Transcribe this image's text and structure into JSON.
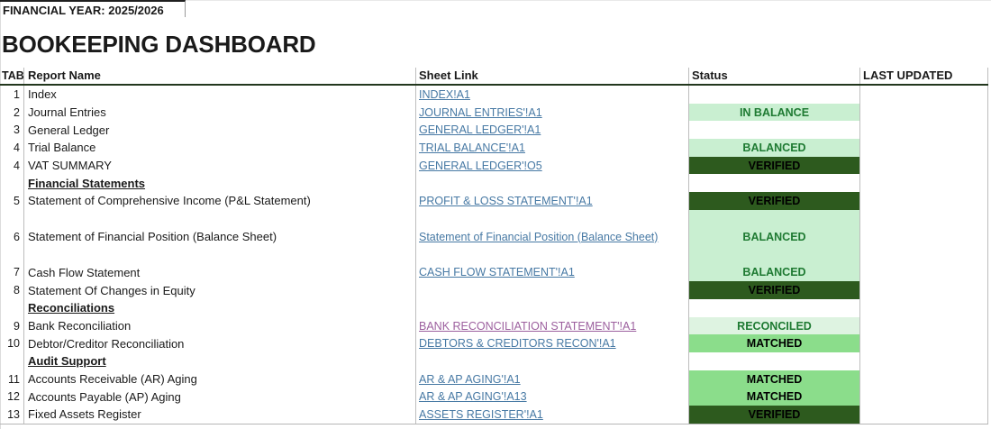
{
  "meta": {
    "financial_year_label": "FINANCIAL YEAR: 2025/2026",
    "title": "BOOKEEPING DASHBOARD"
  },
  "table": {
    "headers": {
      "tab": "TAB",
      "report": "Report Name",
      "sheet": "Sheet Link",
      "status": "Status",
      "updated": "LAST UPDATED"
    },
    "rows": [
      {
        "type": "item",
        "tab": "1",
        "report": "Index",
        "link": "INDEX!A1",
        "visited": false,
        "status": "",
        "status_style": null
      },
      {
        "type": "item",
        "tab": "2",
        "report": "Journal Entries",
        "link": "JOURNAL ENTRIES'!A1",
        "visited": false,
        "status": "IN BALANCE",
        "status_style": "good"
      },
      {
        "type": "item",
        "tab": "3",
        "report": "General Ledger",
        "link": "GENERAL LEDGER'!A1",
        "visited": false,
        "status": "",
        "status_style": null
      },
      {
        "type": "item",
        "tab": "4",
        "report": "Trial Balance",
        "link": "TRIAL BALANCE'!A1",
        "visited": false,
        "status": "BALANCED",
        "status_style": "good"
      },
      {
        "type": "item",
        "tab": "4",
        "report": "VAT SUMMARY",
        "link": "GENERAL LEDGER'!O5",
        "visited": false,
        "status": "VERIFIED",
        "status_style": "verified"
      },
      {
        "type": "section",
        "tab": "",
        "report": "Financial Statements",
        "link": null,
        "status": "",
        "status_style": null
      },
      {
        "type": "item",
        "tab": "5",
        "report": "Statement of Comprehensive Income (P&L Statement)",
        "link": "PROFIT & LOSS STATEMENT'!A1",
        "visited": false,
        "status": "VERIFIED",
        "status_style": "verified"
      },
      {
        "type": "item",
        "tab": "6",
        "report": "Statement of Financial Position (Balance Sheet)",
        "link": "Statement of Financial Position (Balance Sheet)",
        "visited": false,
        "status": "BALANCED",
        "status_style": "good",
        "tall": true
      },
      {
        "type": "item",
        "tab": "7",
        "report": "Cash Flow Statement",
        "link": "CASH FLOW STATEMENT'!A1",
        "visited": false,
        "status": "BALANCED",
        "status_style": "good"
      },
      {
        "type": "item",
        "tab": "8",
        "report": "Statement Of Changes in Equity",
        "link": null,
        "visited": false,
        "status": "VERIFIED",
        "status_style": "verified"
      },
      {
        "type": "section",
        "tab": "",
        "report": "Reconciliations",
        "link": null,
        "status": "",
        "status_style": null
      },
      {
        "type": "item",
        "tab": "9",
        "report": "Bank Reconciliation",
        "link": "BANK RECONCILIATION STATEMENT'!A1",
        "visited": true,
        "status": "RECONCILED",
        "status_style": "reconciled"
      },
      {
        "type": "item",
        "tab": "10",
        "report": "Debtor/Creditor Reconciliation",
        "link": "DEBTORS & CREDITORS RECON'!A1",
        "visited": false,
        "status": "MATCHED",
        "status_style": "matched"
      },
      {
        "type": "section",
        "tab": "",
        "report": "Audit Support",
        "link": null,
        "status": "",
        "status_style": null
      },
      {
        "type": "item",
        "tab": "11",
        "report": "Accounts Receivable (AR) Aging",
        "link": "AR & AP AGING'!A1",
        "visited": false,
        "status": "MATCHED",
        "status_style": "matched"
      },
      {
        "type": "item",
        "tab": "12",
        "report": "Accounts Payable (AP) Aging",
        "link": "AR & AP AGING'!A13",
        "visited": false,
        "status": "MATCHED",
        "status_style": "matched"
      },
      {
        "type": "item",
        "tab": "13",
        "report": "Fixed Assets Register",
        "link": "ASSETS REGISTER'!A1",
        "visited": false,
        "status": "VERIFIED",
        "status_style": "verified"
      }
    ]
  },
  "colors": {
    "status_positive_bg": "#C9EFD1",
    "status_positive_text": "#1E7A32",
    "status_verified_bg": "#2D5A1E",
    "status_verified_text": "#000000",
    "status_reconciled_bg": "#DEF3E1",
    "status_matched_bg": "#8BDD8B",
    "link": "#4779A4",
    "link_visited": "#9C5F9E",
    "header_underline": "#22371D"
  }
}
